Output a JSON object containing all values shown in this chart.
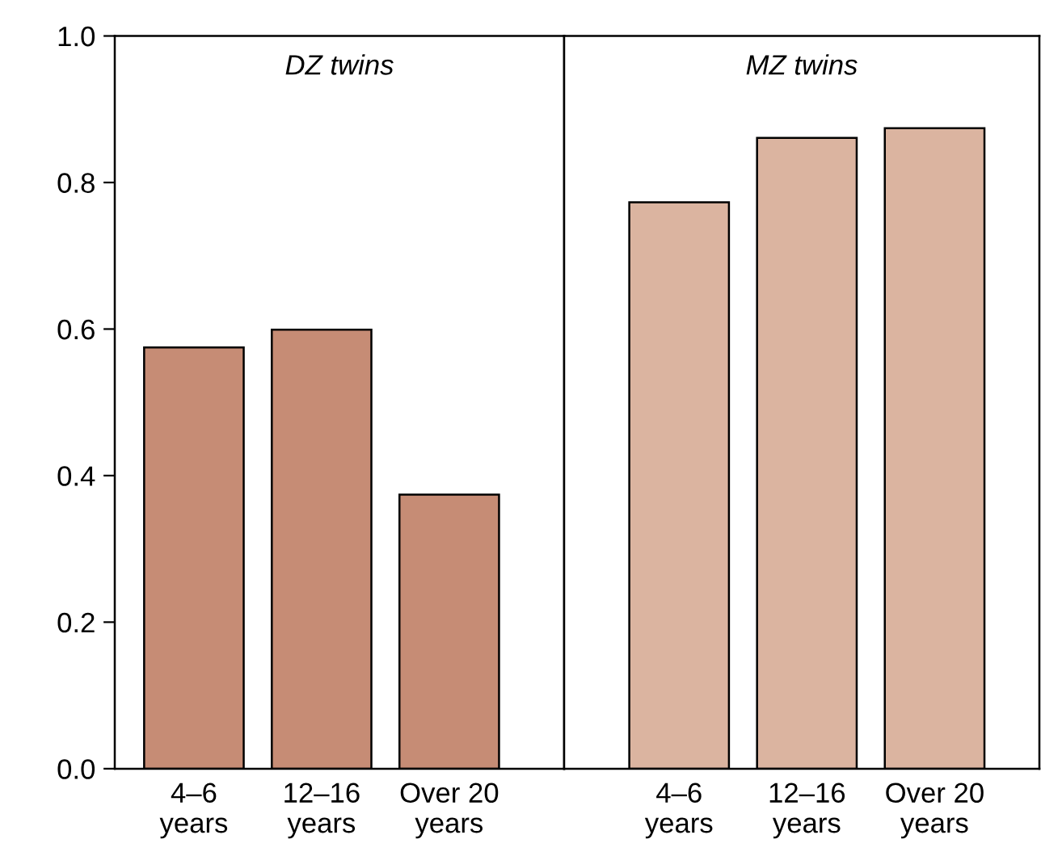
{
  "chart_data": [
    {
      "type": "bar",
      "title": "DZ twins",
      "categories": [
        "4–6\nyears",
        "12–16\nyears",
        "Over 20\nyears"
      ],
      "values": [
        0.575,
        0.599,
        0.374
      ],
      "color": "#c68c75",
      "ylim": [
        0,
        1.0
      ],
      "yticks": [
        {
          "value": 0,
          "label": "0.0"
        },
        {
          "value": 0.2,
          "label": "0.2"
        },
        {
          "value": 0.4,
          "label": "0.4"
        },
        {
          "value": 0.6,
          "label": "0.6"
        },
        {
          "value": 0.8,
          "label": "0.8"
        },
        {
          "value": 1.0,
          "label": "1.0"
        }
      ],
      "grid": false,
      "legend": false
    },
    {
      "type": "bar",
      "title": "MZ twins",
      "categories": [
        "4–6\nyears",
        "12–16\nyears",
        "Over 20\nyears"
      ],
      "values": [
        0.773,
        0.861,
        0.874
      ],
      "color": "#dbb4a0",
      "ylim": [
        0,
        1.0
      ],
      "tick_labels": "x",
      "grid": false,
      "legend": false
    }
  ]
}
